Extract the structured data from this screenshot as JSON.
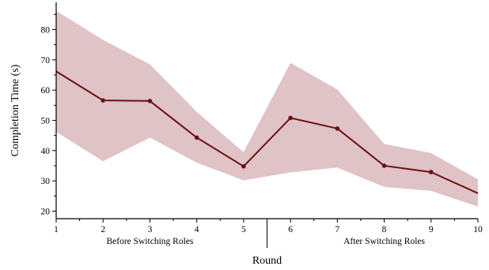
{
  "chart_data": {
    "type": "line",
    "title": "",
    "xlabel": "Round",
    "ylabel": "Completion Time (s)",
    "x": [
      1,
      2,
      3,
      4,
      5,
      6,
      7,
      8,
      9,
      10
    ],
    "xlim": [
      1,
      10
    ],
    "ylim": [
      17.5,
      89
    ],
    "yticks": [
      20,
      30,
      40,
      50,
      60,
      70,
      80
    ],
    "grid": false,
    "legend": "none",
    "series": [
      {
        "name": "",
        "values": [
          66.2,
          56.6,
          56.4,
          44.3,
          34.8,
          50.8,
          47.3,
          35.0,
          32.9,
          25.9
        ],
        "lower": [
          46.2,
          36.5,
          44.3,
          36.0,
          30.2,
          32.8,
          34.4,
          28.0,
          26.7,
          21.5
        ],
        "upper": [
          86.2,
          76.6,
          68.5,
          52.8,
          39.5,
          69.0,
          60.2,
          42.2,
          39.2,
          30.5
        ],
        "color": "#6e0f12",
        "band_color": "#dfc3c6"
      }
    ],
    "sections": [
      {
        "label": "Before Switching Roles",
        "from": 1,
        "to": 5
      },
      {
        "label": "After Switching Roles",
        "from": 6,
        "to": 10
      }
    ]
  }
}
